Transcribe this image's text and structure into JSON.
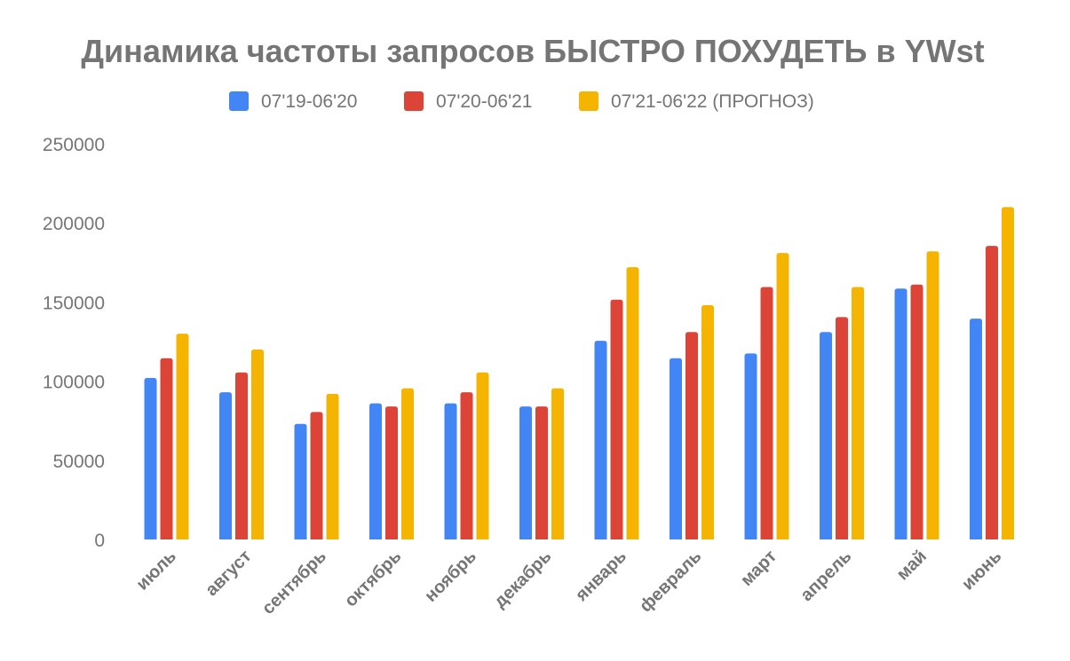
{
  "chart_data": {
    "type": "bar",
    "title": "Динамика частоты запросов БЫСТРО ПОХУДЕТЬ в YWst",
    "xlabel": "",
    "ylabel": "",
    "ylim": [
      0,
      250000
    ],
    "yticks": [
      "0",
      "50000",
      "100000",
      "150000",
      "200000",
      "250000"
    ],
    "grid": false,
    "legend_position": "top",
    "categories": [
      "июль",
      "август",
      "сентябрь",
      "октябрь",
      "ноябрь",
      "декабрь",
      "январь",
      "февраль",
      "март",
      "апрель",
      "май",
      "июнь"
    ],
    "series": [
      {
        "name": "07'19-06'20",
        "color": "#4285F4",
        "values": [
          102000,
          93000,
          73000,
          86000,
          86000,
          84000,
          125500,
          114500,
          117500,
          131000,
          158500,
          139500
        ]
      },
      {
        "name": "07'20-06'21",
        "color": "#DB4437",
        "values": [
          114500,
          105500,
          80500,
          84000,
          93000,
          84000,
          151500,
          131000,
          159500,
          140500,
          161000,
          185500
        ]
      },
      {
        "name": "07'21-06'22 (ПРОГНОЗ)",
        "color": "#F4B400",
        "values": [
          130000,
          120000,
          92000,
          95500,
          105500,
          95500,
          172000,
          148000,
          181000,
          159500,
          182000,
          210000
        ]
      }
    ]
  }
}
